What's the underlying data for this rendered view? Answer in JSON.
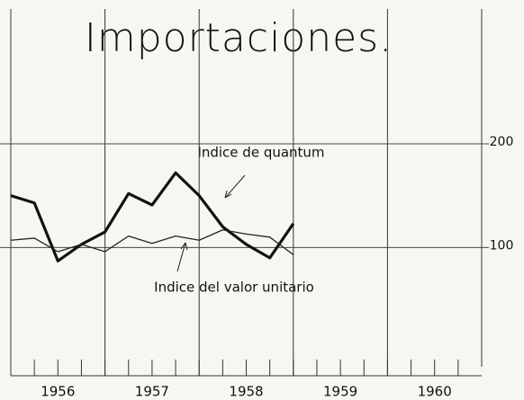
{
  "chart_data": {
    "type": "line",
    "title": "Importaciones.",
    "x": [
      1956,
      1956.25,
      1956.5,
      1956.75,
      1957,
      1957.25,
      1957.5,
      1957.75,
      1958,
      1958.25,
      1958.5,
      1958.75,
      1959
    ],
    "series": [
      {
        "name": "Indice de quantum",
        "color": "#111111",
        "values": [
          150,
          143,
          87,
          103,
          115,
          152,
          141,
          172,
          150,
          120,
          103,
          90,
          123
        ]
      },
      {
        "name": "Indice del valor unitario",
        "color": "#222222",
        "values": [
          107,
          109,
          96,
          103,
          96,
          111,
          104,
          111,
          107,
          117,
          113,
          110,
          93
        ]
      }
    ],
    "xlim": [
      1956,
      1961
    ],
    "xticks": [
      {
        "value": 1956.5,
        "label": "1956"
      },
      {
        "value": 1957.5,
        "label": "1957"
      },
      {
        "value": 1958.5,
        "label": "1958"
      },
      {
        "value": 1959.5,
        "label": "1959"
      },
      {
        "value": 1960.5,
        "label": "1960"
      }
    ],
    "ylim": [
      -15,
      330
    ],
    "yticks": [
      100,
      200
    ],
    "grid": true
  }
}
